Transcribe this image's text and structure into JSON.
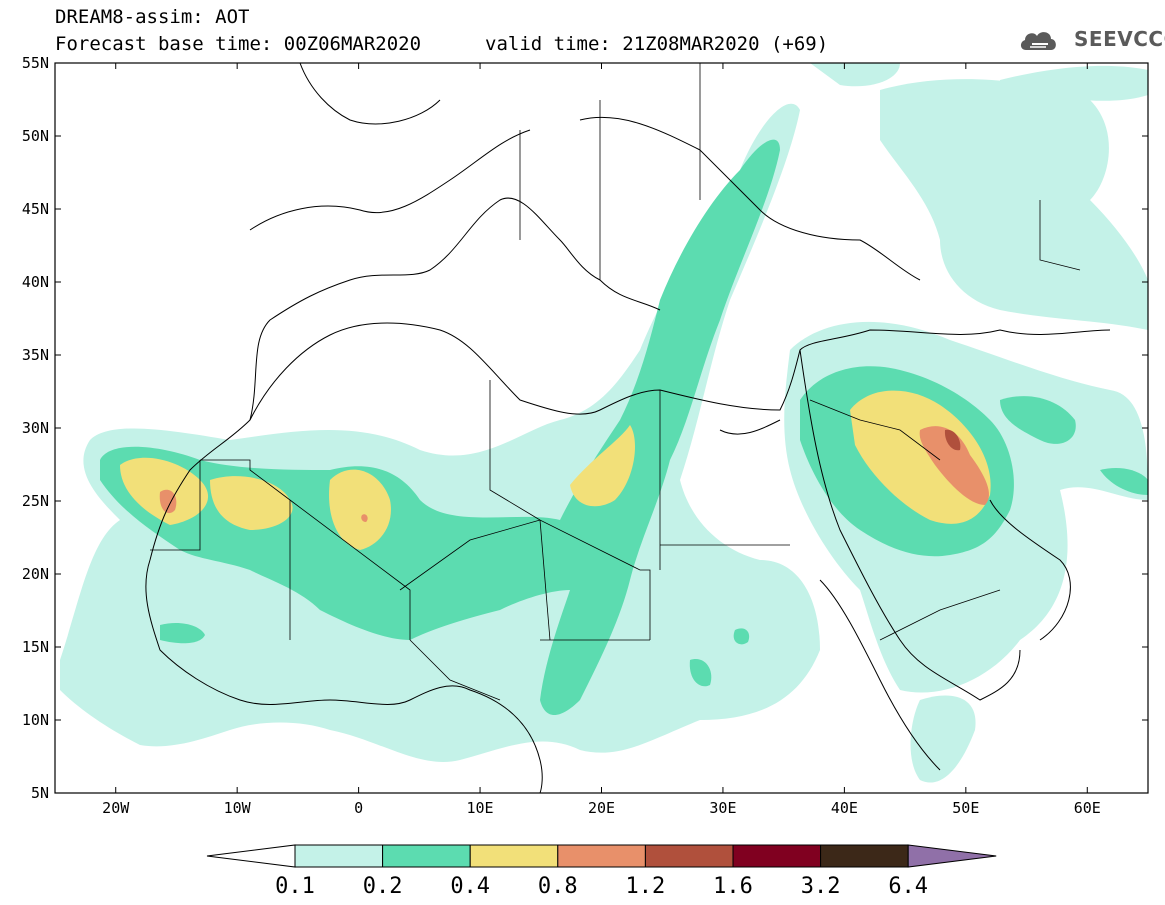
{
  "header": {
    "title": "DREAM8-assim: AOT",
    "base_time": "Forecast base time: 00Z06MAR2020",
    "valid_time": "valid time: 21Z08MAR2020 (+69)",
    "logo_text": "SEEVCCC"
  },
  "map": {
    "lon_range": [
      -25,
      65
    ],
    "lat_range": [
      5,
      55
    ],
    "x_ticks": [
      {
        "lon": -20,
        "label": "20W"
      },
      {
        "lon": -10,
        "label": "10W"
      },
      {
        "lon": 0,
        "label": "0"
      },
      {
        "lon": 10,
        "label": "10E"
      },
      {
        "lon": 20,
        "label": "20E"
      },
      {
        "lon": 30,
        "label": "30E"
      },
      {
        "lon": 40,
        "label": "40E"
      },
      {
        "lon": 50,
        "label": "50E"
      },
      {
        "lon": 60,
        "label": "60E"
      }
    ],
    "y_ticks": [
      {
        "lat": 55,
        "label": "55N"
      },
      {
        "lat": 50,
        "label": "50N"
      },
      {
        "lat": 45,
        "label": "45N"
      },
      {
        "lat": 40,
        "label": "40N"
      },
      {
        "lat": 35,
        "label": "35N"
      },
      {
        "lat": 30,
        "label": "30N"
      },
      {
        "lat": 25,
        "label": "25N"
      },
      {
        "lat": 20,
        "label": "20N"
      },
      {
        "lat": 15,
        "label": "15N"
      },
      {
        "lat": 10,
        "label": "10N"
      },
      {
        "lat": 5,
        "label": "5N"
      }
    ]
  },
  "colorbar": {
    "labels": [
      "0.1",
      "0.2",
      "0.4",
      "0.8",
      "1.2",
      "1.6",
      "3.2",
      "6.4"
    ],
    "colors": [
      "#c4f2e8",
      "#5cdcb0",
      "#f2e079",
      "#e8906a",
      "#b0503c",
      "#800020",
      "#3c2818",
      "#9070a8"
    ],
    "low_color": "#ffffff"
  }
}
